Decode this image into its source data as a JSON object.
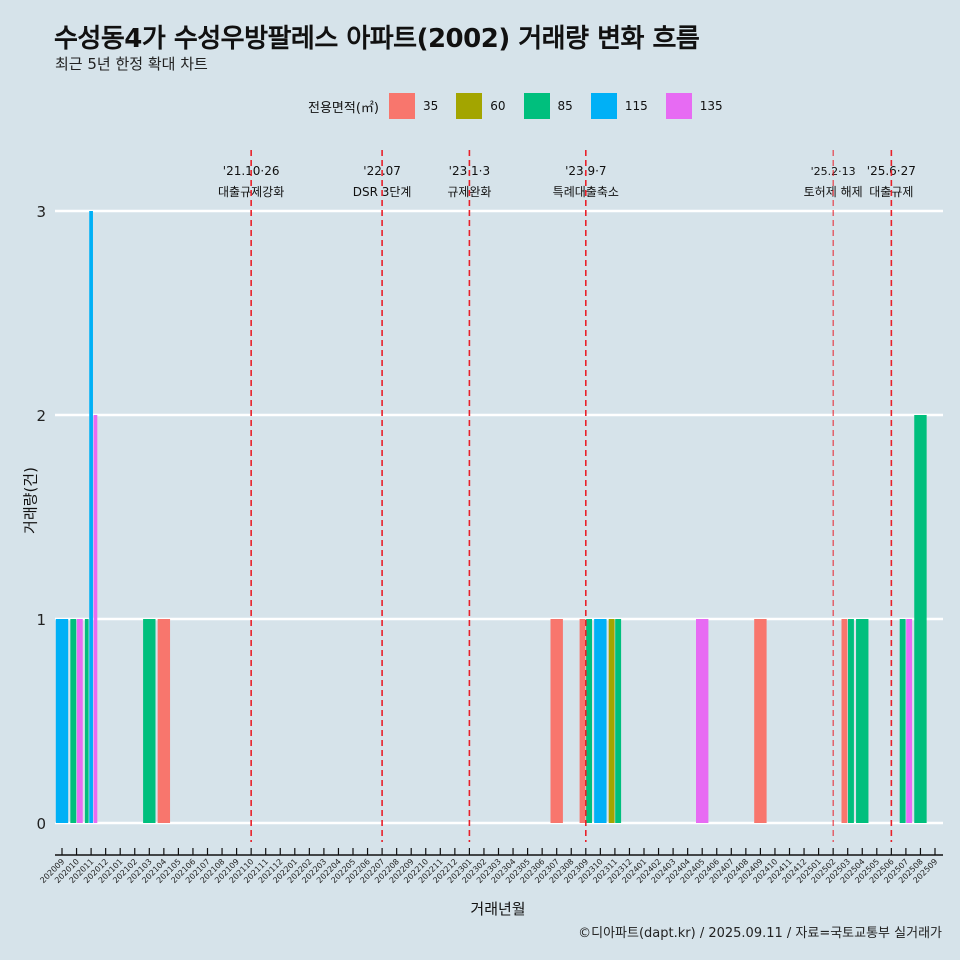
{
  "title": "수성동4가 수성우방팔레스 아파트(2002) 거래량 변화 흐름",
  "subtitle": "최근 5년 한정 확대 차트",
  "caption": "©디아파트(dapt.kr) / 2025.09.11 / 자료=국토교통부 실거래가",
  "chart_data": {
    "type": "bar",
    "xlabel": "거래년월",
    "ylabel": "거래량(건)",
    "ylim": [
      0,
      3
    ],
    "yticks": [
      "0",
      "1",
      "2",
      "3"
    ],
    "legend_title": "전용면적(㎡)",
    "legend": [
      {
        "name": "35",
        "color": "#F8766D"
      },
      {
        "name": "60",
        "color": "#A3A500"
      },
      {
        "name": "85",
        "color": "#00BF7D"
      },
      {
        "name": "115",
        "color": "#00B0F6"
      },
      {
        "name": "135",
        "color": "#E76BF3"
      }
    ],
    "months": [
      "202009",
      "202010",
      "202011",
      "202012",
      "202101",
      "202102",
      "202103",
      "202104",
      "202105",
      "202106",
      "202107",
      "202108",
      "202109",
      "202110",
      "202111",
      "202112",
      "202201",
      "202202",
      "202203",
      "202204",
      "202205",
      "202206",
      "202207",
      "202208",
      "202209",
      "202210",
      "202211",
      "202212",
      "202301",
      "202302",
      "202303",
      "202304",
      "202305",
      "202306",
      "202307",
      "202308",
      "202309",
      "202310",
      "202311",
      "202312",
      "202401",
      "202402",
      "202403",
      "202404",
      "202405",
      "202406",
      "202407",
      "202408",
      "202409",
      "202410",
      "202411",
      "202412",
      "202501",
      "202502",
      "202503",
      "202504",
      "202505",
      "202506",
      "202507",
      "202508",
      "202509"
    ],
    "data": [
      {
        "month": "202009",
        "area": "115",
        "count": 1
      },
      {
        "month": "202010",
        "area": "85",
        "count": 1
      },
      {
        "month": "202010",
        "area": "135",
        "count": 1
      },
      {
        "month": "202011",
        "area": "85",
        "count": 1
      },
      {
        "month": "202011",
        "area": "115",
        "count": 3
      },
      {
        "month": "202011",
        "area": "135",
        "count": 2
      },
      {
        "month": "202103",
        "area": "85",
        "count": 1
      },
      {
        "month": "202104",
        "area": "35",
        "count": 1
      },
      {
        "month": "202307",
        "area": "35",
        "count": 1
      },
      {
        "month": "202309",
        "area": "35",
        "count": 1
      },
      {
        "month": "202309",
        "area": "85",
        "count": 1
      },
      {
        "month": "202310",
        "area": "115",
        "count": 1
      },
      {
        "month": "202311",
        "area": "60",
        "count": 1
      },
      {
        "month": "202311",
        "area": "85",
        "count": 1
      },
      {
        "month": "202405",
        "area": "135",
        "count": 1
      },
      {
        "month": "202409",
        "area": "35",
        "count": 1
      },
      {
        "month": "202503",
        "area": "35",
        "count": 1
      },
      {
        "month": "202503",
        "area": "85",
        "count": 1
      },
      {
        "month": "202504",
        "area": "85",
        "count": 1
      },
      {
        "month": "202507",
        "area": "85",
        "count": 1
      },
      {
        "month": "202507",
        "area": "135",
        "count": 1
      },
      {
        "month": "202508",
        "area": "85",
        "count": 2
      }
    ],
    "events": [
      {
        "month": "202110",
        "date": "'21.10·26",
        "label": "대출규제강화",
        "style": "bold"
      },
      {
        "month": "202207",
        "date": "'22.07",
        "label": "DSR 3단계",
        "style": "bold"
      },
      {
        "month": "202301",
        "date": "'23.1·3",
        "label": "규제완화",
        "style": "bold"
      },
      {
        "month": "202309",
        "date": "'23.9·7",
        "label": "특례대출축소",
        "style": "bold"
      },
      {
        "month": "202502",
        "date": "'25.2·13",
        "label": "토허제 해제",
        "style": "thin"
      },
      {
        "month": "202506",
        "date": "'25.6·27",
        "label": "대출규제",
        "style": "bold"
      }
    ]
  }
}
